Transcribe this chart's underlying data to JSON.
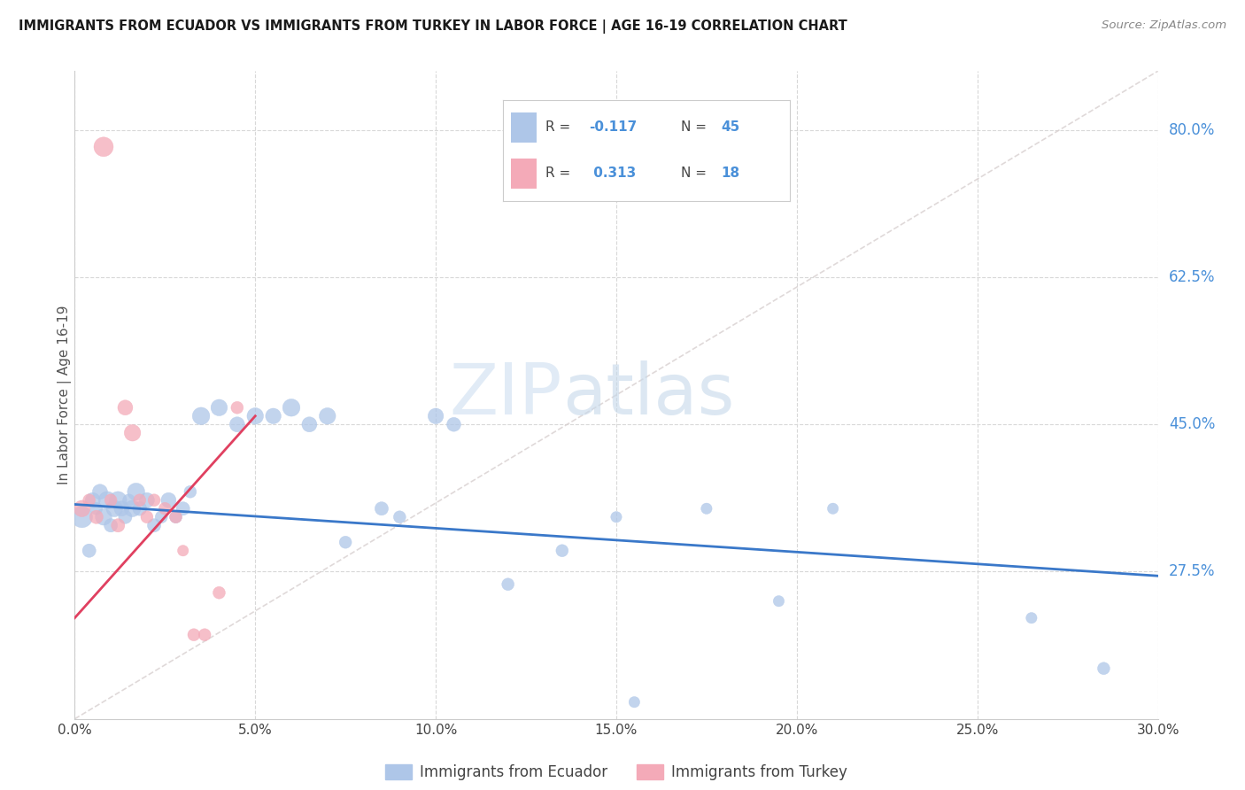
{
  "title": "IMMIGRANTS FROM ECUADOR VS IMMIGRANTS FROM TURKEY IN LABOR FORCE | AGE 16-19 CORRELATION CHART",
  "source": "Source: ZipAtlas.com",
  "ylabel": "In Labor Force | Age 16-19",
  "xlabel_vals": [
    0.0,
    5.0,
    10.0,
    15.0,
    20.0,
    25.0,
    30.0
  ],
  "right_ytick_labels": [
    "80.0%",
    "62.5%",
    "45.0%",
    "27.5%"
  ],
  "right_ytick_vals": [
    80.0,
    62.5,
    45.0,
    27.5
  ],
  "xlim": [
    0.0,
    30.0
  ],
  "ylim": [
    10.0,
    87.0
  ],
  "legend_r1": "R = -0.117",
  "legend_n1": "N = 45",
  "legend_r2": "R =  0.313",
  "legend_n2": "N = 18",
  "ecuador_color": "#aec6e8",
  "turkey_color": "#f4aab8",
  "ecuador_line_color": "#3a78c9",
  "turkey_line_color": "#e04060",
  "ref_line_color": "#d8d0d0",
  "grid_color": "#d8d8d8",
  "text_blue": "#4a90d9",
  "text_red": "#e04060",
  "ecuador_points_x": [
    0.2,
    0.4,
    0.5,
    0.6,
    0.7,
    0.8,
    0.9,
    1.0,
    1.1,
    1.2,
    1.3,
    1.4,
    1.5,
    1.6,
    1.7,
    1.8,
    2.0,
    2.2,
    2.4,
    2.6,
    2.8,
    3.0,
    3.2,
    3.5,
    4.0,
    4.5,
    5.0,
    5.5,
    6.0,
    6.5,
    7.0,
    7.5,
    8.5,
    9.0,
    10.0,
    10.5,
    12.0,
    13.5,
    15.0,
    17.5,
    19.5,
    21.0,
    26.5,
    28.5,
    15.5
  ],
  "ecuador_points_y": [
    34.0,
    30.0,
    36.0,
    35.0,
    37.0,
    34.0,
    36.0,
    33.0,
    35.0,
    36.0,
    35.0,
    34.0,
    36.0,
    35.0,
    37.0,
    35.0,
    36.0,
    33.0,
    34.0,
    36.0,
    34.0,
    35.0,
    37.0,
    46.0,
    47.0,
    45.0,
    46.0,
    46.0,
    47.0,
    45.0,
    46.0,
    31.0,
    35.0,
    34.0,
    46.0,
    45.0,
    26.0,
    30.0,
    34.0,
    35.0,
    24.0,
    35.0,
    22.0,
    16.0,
    12.0
  ],
  "ecuador_sizes": [
    300,
    120,
    150,
    100,
    150,
    180,
    200,
    120,
    180,
    200,
    150,
    120,
    100,
    180,
    200,
    130,
    150,
    120,
    100,
    150,
    100,
    120,
    100,
    200,
    180,
    150,
    180,
    160,
    200,
    150,
    180,
    100,
    120,
    100,
    160,
    130,
    100,
    100,
    80,
    80,
    80,
    80,
    80,
    100,
    80
  ],
  "turkey_points_x": [
    0.2,
    0.4,
    0.6,
    0.8,
    1.0,
    1.2,
    1.4,
    1.6,
    1.8,
    2.0,
    2.2,
    2.5,
    2.8,
    3.0,
    3.3,
    3.6,
    4.0,
    4.5
  ],
  "turkey_points_y": [
    35.0,
    36.0,
    34.0,
    78.0,
    36.0,
    33.0,
    47.0,
    44.0,
    36.0,
    34.0,
    36.0,
    35.0,
    34.0,
    30.0,
    20.0,
    20.0,
    25.0,
    47.0
  ],
  "turkey_sizes": [
    180,
    100,
    120,
    250,
    100,
    120,
    150,
    180,
    100,
    100,
    100,
    100,
    100,
    80,
    100,
    100,
    100,
    100
  ],
  "watermark_zip": "ZIP",
  "watermark_atlas": "atlas",
  "legend_labels": [
    "Immigrants from Ecuador",
    "Immigrants from Turkey"
  ],
  "ecuador_trend_x0": 0.0,
  "ecuador_trend_y0": 35.5,
  "ecuador_trend_x1": 30.0,
  "ecuador_trend_y1": 27.0,
  "turkey_trend_x0": 0.0,
  "turkey_trend_y0": 22.0,
  "turkey_trend_x1": 5.0,
  "turkey_trend_y1": 46.0
}
